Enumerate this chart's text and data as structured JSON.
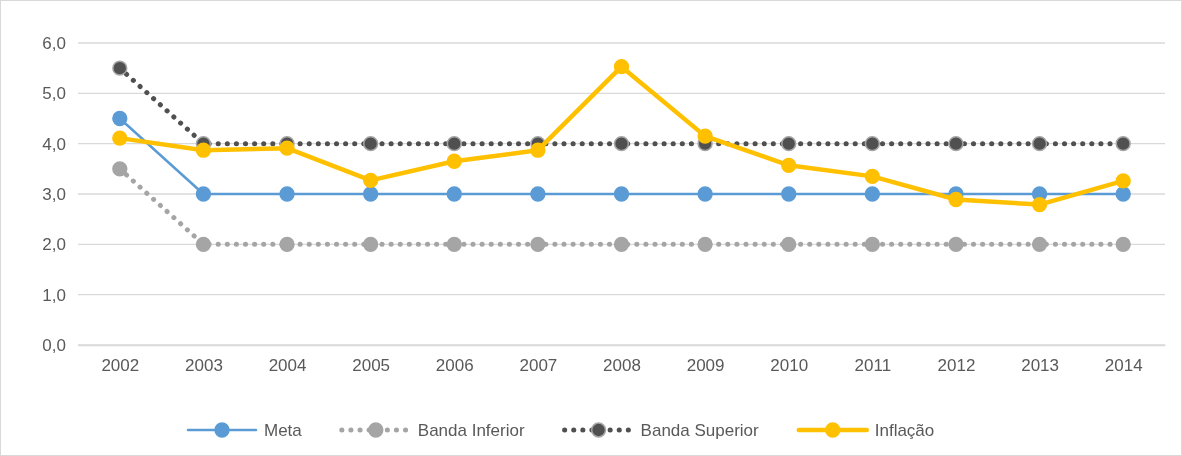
{
  "chart_data": {
    "type": "line",
    "categories": [
      "2002",
      "2003",
      "2004",
      "2005",
      "2006",
      "2007",
      "2008",
      "2009",
      "2010",
      "2011",
      "2012",
      "2013",
      "2014"
    ],
    "series": [
      {
        "name": "Meta",
        "color": "#5b9bd5",
        "line_style": "solid",
        "values": [
          4.5,
          3,
          3,
          3,
          3,
          3,
          3,
          3,
          3,
          3,
          3,
          3,
          3
        ]
      },
      {
        "name": "Banda Inferior",
        "color": "#a5a5a5",
        "line_style": "dotted",
        "values": [
          3.5,
          2,
          2,
          2,
          2,
          2,
          2,
          2,
          2,
          2,
          2,
          2,
          2
        ]
      },
      {
        "name": "Banda Superior",
        "color": "#505050",
        "line_style": "dotted",
        "values": [
          5.5,
          4,
          4,
          4,
          4,
          4,
          4,
          4,
          4,
          4,
          4,
          4,
          4
        ]
      },
      {
        "name": "Inflação",
        "color": "#ffc000",
        "line_style": "solid",
        "values": [
          4.11,
          3.87,
          3.91,
          3.27,
          3.65,
          3.87,
          5.53,
          4.15,
          3.57,
          3.35,
          2.89,
          2.79,
          3.26
        ]
      }
    ],
    "ylim": [
      0,
      6
    ],
    "yticks": [
      {
        "value": 0,
        "label": "0,0"
      },
      {
        "value": 1,
        "label": "1,0"
      },
      {
        "value": 2,
        "label": "2,0"
      },
      {
        "value": 3,
        "label": "3,0"
      },
      {
        "value": 4,
        "label": "4,0"
      },
      {
        "value": 5,
        "label": "5,0"
      },
      {
        "value": 6,
        "label": "6,0"
      }
    ],
    "grid": "y",
    "legend": "bottom",
    "marker": "circle"
  }
}
